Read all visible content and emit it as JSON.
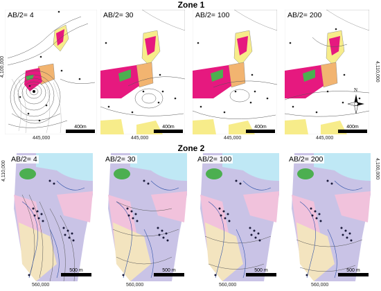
{
  "zone1": {
    "title": "Zone 1",
    "panels": [
      {
        "label": "AB/2= 4"
      },
      {
        "label": "AB/2= 30"
      },
      {
        "label": "AB/2= 100"
      },
      {
        "label": "AB/2= 200"
      }
    ],
    "x_coord": "445,000",
    "y_coord_left": "4,100,000",
    "y_coord_right": "4,110,000",
    "scale_label": "400m"
  },
  "zone2": {
    "title": "Zone 2",
    "panels": [
      {
        "label": "AB/2= 4"
      },
      {
        "label": "AB/2= 30"
      },
      {
        "label": "AB/2= 100"
      },
      {
        "label": "AB/2= 200"
      }
    ],
    "x_coord": "560,000",
    "y_coord_left": "4,110,000",
    "y_coord_right": "4,100,000",
    "scale_label": "500 m"
  },
  "north_label": "N",
  "colors": {
    "magenta": "#e6197f",
    "yellow": "#f7ec8a",
    "orange": "#f2b470",
    "green": "#4caf50",
    "cyan": "#bfe8f5",
    "pink": "#f1c2dc",
    "lavender": "#c9c3e6",
    "tan": "#f3e4bf"
  }
}
